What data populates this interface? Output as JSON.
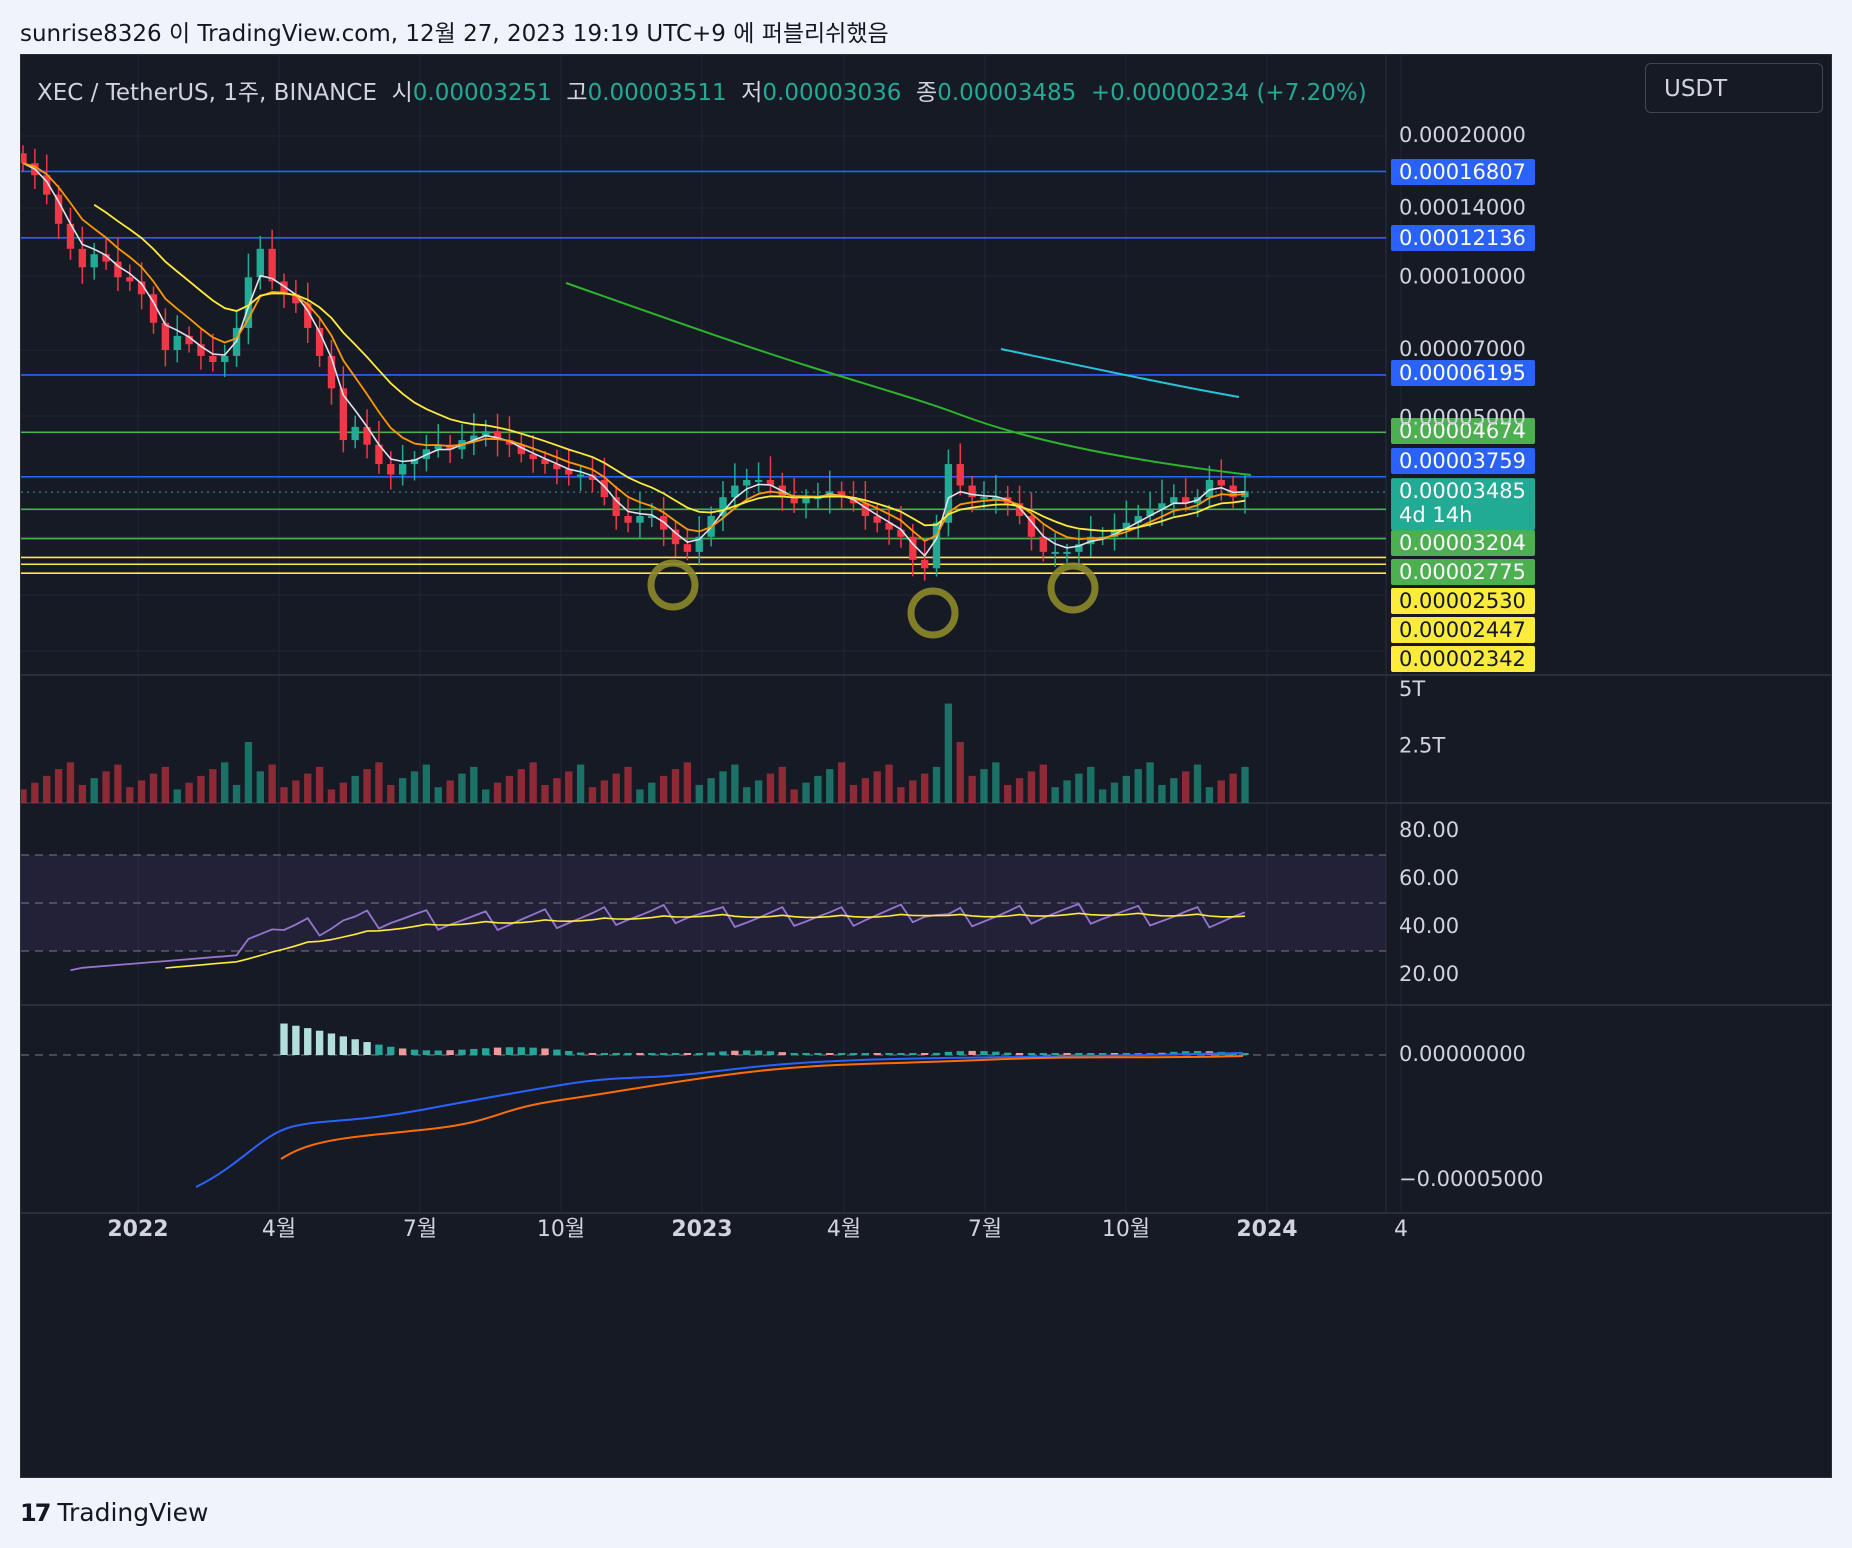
{
  "header": {
    "text": "sunrise8326 이 TradingView.com, 12월 27, 2023 19:19 UTC+9 에 퍼블리쉬했음"
  },
  "legend": {
    "symbol": "XEC / TetherUS, 1주, BINANCE",
    "open_label": "시",
    "open": "0.00003251",
    "high_label": "고",
    "high": "0.00003511",
    "low_label": "저",
    "low": "0.00003036",
    "close_label": "종",
    "close": "0.00003485",
    "change": "+0.00000234 (+7.20%)"
  },
  "currency_button": "USDT",
  "footer": {
    "brand": "TradingView",
    "logo_glyph": "17"
  },
  "colors": {
    "up": "#22ab94",
    "down": "#f23645",
    "background": "#161a25",
    "blue_line": "#2962ff",
    "green_line": "#4caf50",
    "yellow_line": "#ffeb3b"
  },
  "chart_data": {
    "type": "candlestick",
    "symbol": "XEC/USDT",
    "interval": "1W",
    "exchange": "BINANCE",
    "x_tick_labels": [
      "2022",
      "4월",
      "7월",
      "10월",
      "2023",
      "4월",
      "7월",
      "10월",
      "2024",
      "4"
    ],
    "price_axis": {
      "scale": "log",
      "tick_labels": [
        "0.00020000",
        "0.00014000",
        "0.00010000",
        "0.00007000",
        "0.00005000"
      ],
      "ticks": [
        0.0002,
        0.00014,
        0.0001,
        7e-05,
        5e-05
      ]
    },
    "current_price": {
      "value": 3.485e-05,
      "label": "0.00003485",
      "countdown": "4d 14h"
    },
    "horizontal_levels": [
      {
        "value": 0.00016807,
        "label": "0.00016807",
        "color": "blue"
      },
      {
        "value": 0.00012136,
        "label": "0.00012136",
        "color": "blue"
      },
      {
        "value": 6.195e-05,
        "label": "0.00006195",
        "color": "blue"
      },
      {
        "value": 4.674e-05,
        "label": "0.00004674",
        "color": "green"
      },
      {
        "value": 3.759e-05,
        "label": "0.00003759",
        "color": "blue"
      },
      {
        "value": 3.204e-05,
        "label": "0.00003204",
        "color": "green"
      },
      {
        "value": 2.775e-05,
        "label": "0.00002775",
        "color": "green"
      },
      {
        "value": 2.53e-05,
        "label": "0.00002530",
        "color": "yellow"
      },
      {
        "value": 2.447e-05,
        "label": "0.00002447",
        "color": "yellow"
      },
      {
        "value": 2.342e-05,
        "label": "0.00002342",
        "color": "yellow"
      }
    ],
    "closes_sampled": [
      0.000175,
      0.000165,
      0.00015,
      0.00013,
      0.000115,
      0.000105,
      0.000112,
      0.000108,
      0.0001,
      9.8e-05,
      9.2e-05,
      8e-05,
      7e-05,
      7.5e-05,
      7.2e-05,
      6.8e-05,
      6.6e-05,
      6.8e-05,
      7.8e-05,
      0.0001,
      0.000115,
      9.8e-05,
      9.2e-05,
      8.8e-05,
      7.8e-05,
      6.8e-05,
      5.8e-05,
      4.5e-05,
      4.8e-05,
      4.4e-05,
      4e-05,
      3.8e-05,
      4e-05,
      4.1e-05,
      4.3e-05,
      4.4e-05,
      4.3e-05,
      4.5e-05,
      4.6e-05,
      4.7e-05,
      4.5e-05,
      4.4e-05,
      4.2e-05,
      4.1e-05,
      4e-05,
      3.9e-05,
      3.8e-05,
      3.8e-05,
      3.7e-05,
      3.4e-05,
      3.1e-05,
      3e-05,
      3.1e-05,
      3.1e-05,
      2.9e-05,
      2.7e-05,
      2.6e-05,
      2.8e-05,
      3.1e-05,
      3.4e-05,
      3.6e-05,
      3.7e-05,
      3.7e-05,
      3.6e-05,
      3.4e-05,
      3.3e-05,
      3.4e-05,
      3.4e-05,
      3.5e-05,
      3.4e-05,
      3.3e-05,
      3.1e-05,
      3e-05,
      2.9e-05,
      2.8e-05,
      2.5e-05,
      2.4e-05,
      3e-05,
      4e-05,
      3.6e-05,
      3.4e-05,
      3.4e-05,
      3.4e-05,
      3.3e-05,
      3.1e-05,
      2.8e-05,
      2.6e-05,
      2.6e-05,
      2.6e-05,
      2.7e-05,
      2.8e-05,
      2.8e-05,
      2.9e-05,
      3e-05,
      3.1e-05,
      3.2e-05,
      3.3e-05,
      3.4e-05,
      3.3e-05,
      3.4e-05,
      3.7e-05,
      3.6e-05,
      3.4e-05,
      3.5e-05
    ],
    "volume_pane": {
      "tick_labels": [
        "5T",
        "2.5T"
      ],
      "ticks": [
        5,
        2.5
      ]
    },
    "rsi_pane": {
      "tick_labels": [
        "80.00",
        "60.00",
        "40.00",
        "20.00"
      ],
      "ticks": [
        80,
        60,
        40,
        20
      ],
      "bands": [
        70,
        50,
        30
      ]
    },
    "macd_pane": {
      "tick_labels": [
        "0.00000000",
        "−0.00005000"
      ],
      "ticks": [
        0,
        -5e-05
      ]
    }
  }
}
